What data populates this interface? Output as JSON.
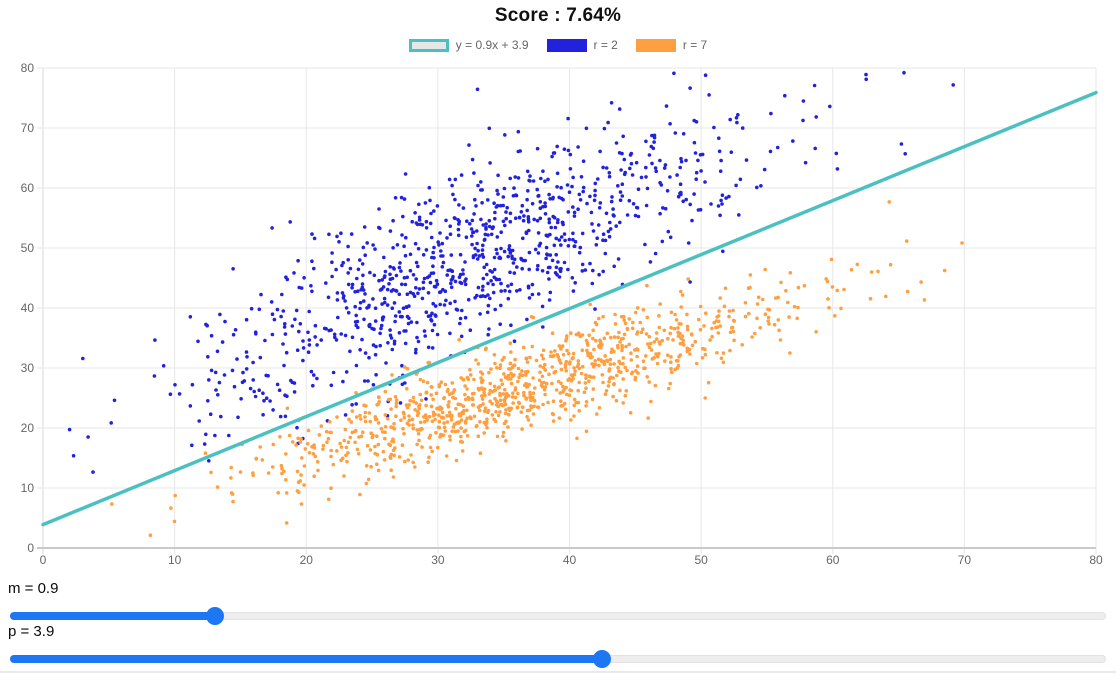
{
  "title": "Score : 7.64%",
  "legend": {
    "items": [
      {
        "label": "y = 0.9x + 3.9",
        "swatch_fill": "#e6e6e6",
        "swatch_border": "#4bc0c0"
      },
      {
        "label": "r = 2",
        "swatch_fill": "#2121de",
        "swatch_border": "#2121de"
      },
      {
        "label": "r = 7",
        "swatch_fill": "#ff9f40",
        "swatch_border": "#ff9f40"
      }
    ]
  },
  "chart_data": {
    "type": "scatter",
    "title": "Score : 7.64%",
    "score_percent": 7.64,
    "xlim": [
      0,
      80
    ],
    "ylim": [
      0,
      80
    ],
    "x_ticks": [
      0,
      10,
      20,
      30,
      40,
      50,
      60,
      70,
      80
    ],
    "y_ticks": [
      0,
      10,
      20,
      30,
      40,
      50,
      60,
      70,
      80
    ],
    "grid": true,
    "legend_position": "top",
    "fit_line": {
      "label": "y = 0.9x + 3.9",
      "slope": 0.9,
      "intercept": 3.9,
      "color": "#4bc0c0",
      "stroke_width": 3.5,
      "x_range": [
        0,
        80
      ]
    },
    "series": [
      {
        "name": "r = 2",
        "color": "#2121de",
        "count": 1000,
        "seed": 2,
        "x_mean": 32,
        "x_sd": 10.5,
        "spread_prob": 0.02,
        "spread_min": 48,
        "spread_max": 72,
        "trend_slope": 0.93,
        "trend_intercept": 17.5,
        "noise_sd": 7.4,
        "point_radius": 1.8
      },
      {
        "name": "r = 7",
        "color": "#ff9f40",
        "count": 1000,
        "seed": 7,
        "x_mean": 36,
        "x_sd": 10,
        "spread_prob": 0.025,
        "spread_min": 50,
        "spread_max": 70,
        "trend_slope": 0.68,
        "trend_intercept": 2.2,
        "noise_sd": 3.6,
        "point_radius": 1.8
      }
    ]
  },
  "controls": {
    "m": {
      "label": "m = 0.9",
      "value": 0.9,
      "fill_percent": 18.7
    },
    "p": {
      "label": "p = 3.9",
      "value": 3.9,
      "fill_percent": 54.0
    }
  },
  "colors": {
    "grid": "#e7e7e7",
    "axis_line": "#c9c9c9",
    "tick_text": "#666666",
    "title_text": "#111111",
    "legend_text": "#666666",
    "slider_accent": "#1d76f2",
    "slider_track": "#ededed",
    "background": "#ffffff"
  }
}
